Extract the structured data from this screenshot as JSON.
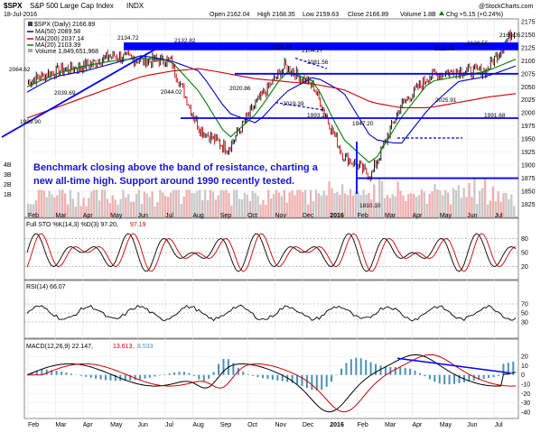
{
  "header": {
    "ticker": "$SPX",
    "name": "S&P 500 Large Cap Index",
    "exchange": "INDX",
    "date": "18-Jul-2016",
    "watermark": "@StockCharts.com",
    "open": "Open 2162.04",
    "high": "High 2168.35",
    "low": "Low 2159.63",
    "close": "Close 2166.89",
    "volume": "Volume 1.8B",
    "chg": "Chg +5.15 (+0.24%)",
    "chg_arrow": "up-arrow"
  },
  "legend": {
    "daily": "$SPX (Daily) 2166.89",
    "ma50": "MA(50) 2089.58",
    "ma200": "MA(200) 2037.14",
    "ma20": "MA(20) 2103.39",
    "volume": "Volume 1,849,651,968"
  },
  "annotation": {
    "line1": "Benchmark closing above the band of resistance, charting a",
    "line2": "new all-time high. Support around 1990 recently tested."
  },
  "price_labels": [
    "2134.72",
    "2132.82",
    "2064.62",
    "2039.69",
    "2044.02",
    "2020.86",
    "2019.39",
    "2116.48",
    "2104.27",
    "2081.56",
    "1993.26",
    "1947.20",
    "2111.05",
    "2120.55",
    "2025.91",
    "1991.68",
    "2169.05",
    "1989.90",
    "1810.10"
  ],
  "indicators": {
    "sto": "Full STO %K(14,3) %D(3) 97.20,",
    "sto_d": "97.19",
    "rsi": "RSI(14) 66.07",
    "macd": "MACD(12,26,9) 22.147,",
    "macd_sig": "13.613,",
    "macd_hist": "8.533"
  },
  "price_axis": [
    "2175",
    "2150",
    "2125",
    "2100",
    "2075",
    "2050",
    "2025",
    "2000",
    "1975",
    "1950",
    "1925",
    "1900",
    "1875",
    "1850",
    "1825",
    "1800"
  ],
  "vol_axis": [
    "4B",
    "3B",
    "2B",
    "1B"
  ],
  "sto_axis": [
    "80",
    "50",
    "20"
  ],
  "rsi_axis": [
    "70",
    "50",
    "30"
  ],
  "macd_axis": [
    "20",
    "10",
    "0",
    "-10",
    "-20",
    "-30",
    "-40"
  ],
  "month_labels": [
    "Feb",
    "Mar",
    "Apr",
    "May",
    "Jun",
    "Jul",
    "Aug",
    "Sep",
    "Oct",
    "Nov",
    "Dec",
    "2016",
    "Feb",
    "Mar",
    "Apr",
    "May",
    "Jun",
    "Jul"
  ],
  "colors": {
    "band": "#0000ff",
    "ma50": "#0000cc",
    "ma200": "#cc0000",
    "ma20": "#008000",
    "candle_up": "#000000",
    "candle_down": "#cc0000",
    "annotation_text": "#ffffff",
    "annotation_bg": "#0000dd",
    "macd_line": "#000000",
    "macd_signal": "#cc0000",
    "macd_hist": "#4a90b8"
  },
  "chart_data": {
    "type": "line",
    "title": "$SPX S&P 500 Large Cap Index INDX",
    "x": [
      "2015-02",
      "2015-03",
      "2015-04",
      "2015-05",
      "2015-06",
      "2015-07",
      "2015-08",
      "2015-09",
      "2015-10",
      "2015-11",
      "2015-12",
      "2016-01",
      "2016-02",
      "2016-03",
      "2016-04",
      "2016-05",
      "2016-06",
      "2016-07"
    ],
    "series": [
      {
        "name": "$SPX (Daily) 2166.89",
        "values": [
          2060,
          2080,
          2090,
          2110,
          2100,
          2100,
          1970,
          1930,
          2020,
          2090,
          2050,
          1920,
          1880,
          2010,
          2070,
          2080,
          2080,
          2160
        ]
      },
      {
        "name": "MA(50) 2089.58",
        "values": [
          2040,
          2070,
          2080,
          2095,
          2110,
          2100,
          2080,
          2000,
          1980,
          2040,
          2070,
          2040,
          1950,
          1940,
          2010,
          2060,
          2070,
          2090
        ]
      },
      {
        "name": "MA(200) 2037.14",
        "values": [
          1990,
          2010,
          2030,
          2050,
          2070,
          2080,
          2085,
          2075,
          2065,
          2060,
          2055,
          2045,
          2020,
          2010,
          2010,
          2020,
          2030,
          2037
        ]
      },
      {
        "name": "MA(20) 2103.39",
        "values": [
          2050,
          2075,
          2090,
          2100,
          2105,
          2100,
          2040,
          1950,
          2000,
          2080,
          2060,
          1950,
          1900,
          1990,
          2060,
          2070,
          2080,
          2103
        ]
      }
    ],
    "ylim": [
      1800,
      2180
    ],
    "resistance_band": [
      2120,
      2135
    ],
    "support": 1990,
    "yscale": "linear",
    "grid": true
  }
}
